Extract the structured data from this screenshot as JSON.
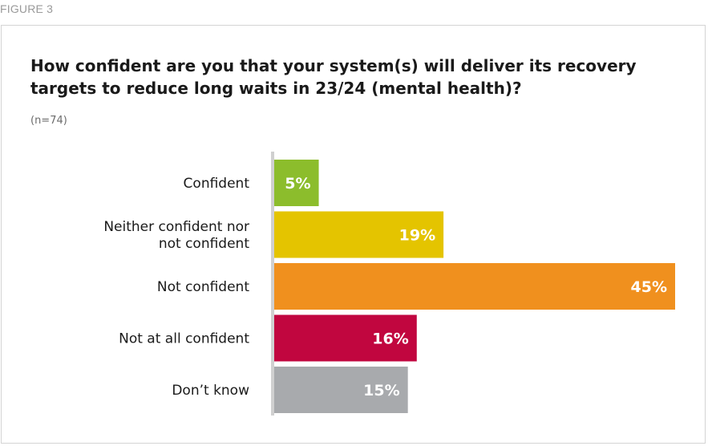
{
  "figure_label": "FIGURE 3",
  "chart_data": {
    "type": "bar",
    "orientation": "horizontal",
    "title": "How confident are you that your system(s) will deliver its recovery targets to reduce long waits in 23/24 (mental health)?",
    "subtitle": "(n=74)",
    "categories": [
      [
        "Confident"
      ],
      [
        "Neither confident nor",
        "not confident"
      ],
      [
        "Not confident"
      ],
      [
        "Not at all confident"
      ],
      [
        "Don’t know"
      ]
    ],
    "values": [
      5,
      19,
      45,
      16,
      15
    ],
    "value_labels": [
      "5%",
      "19%",
      "45%",
      "16%",
      "15%"
    ],
    "colors": [
      "#8cbd2c",
      "#e4c400",
      "#f0901e",
      "#c1063f",
      "#a8aaad"
    ],
    "axis_color": "#d0d0d0",
    "xlim": [
      0,
      45
    ],
    "grid": false,
    "legend": "none"
  }
}
